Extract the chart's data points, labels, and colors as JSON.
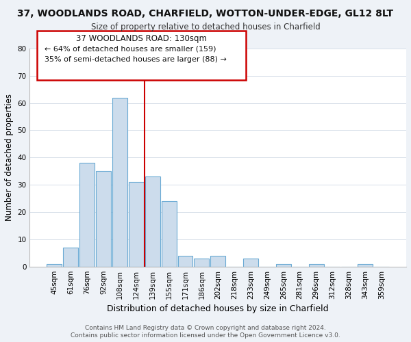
{
  "title": "37, WOODLANDS ROAD, CHARFIELD, WOTTON-UNDER-EDGE, GL12 8LT",
  "subtitle": "Size of property relative to detached houses in Charfield",
  "xlabel": "Distribution of detached houses by size in Charfield",
  "ylabel": "Number of detached properties",
  "bar_labels": [
    "45sqm",
    "61sqm",
    "76sqm",
    "92sqm",
    "108sqm",
    "124sqm",
    "139sqm",
    "155sqm",
    "171sqm",
    "186sqm",
    "202sqm",
    "218sqm",
    "233sqm",
    "249sqm",
    "265sqm",
    "281sqm",
    "296sqm",
    "312sqm",
    "328sqm",
    "343sqm",
    "359sqm"
  ],
  "bar_values": [
    1,
    7,
    38,
    35,
    62,
    31,
    33,
    24,
    4,
    3,
    4,
    0,
    3,
    0,
    1,
    0,
    1,
    0,
    0,
    1,
    0
  ],
  "bar_color": "#ccdcec",
  "bar_edge_color": "#6aaad4",
  "vline_color": "#cc0000",
  "ylim": [
    0,
    80
  ],
  "yticks": [
    0,
    10,
    20,
    30,
    40,
    50,
    60,
    70,
    80
  ],
  "annotation_title": "37 WOODLANDS ROAD: 130sqm",
  "annotation_line1": "← 64% of detached houses are smaller (159)",
  "annotation_line2": "35% of semi-detached houses are larger (88) →",
  "bg_color": "#eef2f7",
  "plot_bg_color": "#ffffff",
  "grid_color": "#d5dde8",
  "footer1": "Contains HM Land Registry data © Crown copyright and database right 2024.",
  "footer2": "Contains public sector information licensed under the Open Government Licence v3.0."
}
